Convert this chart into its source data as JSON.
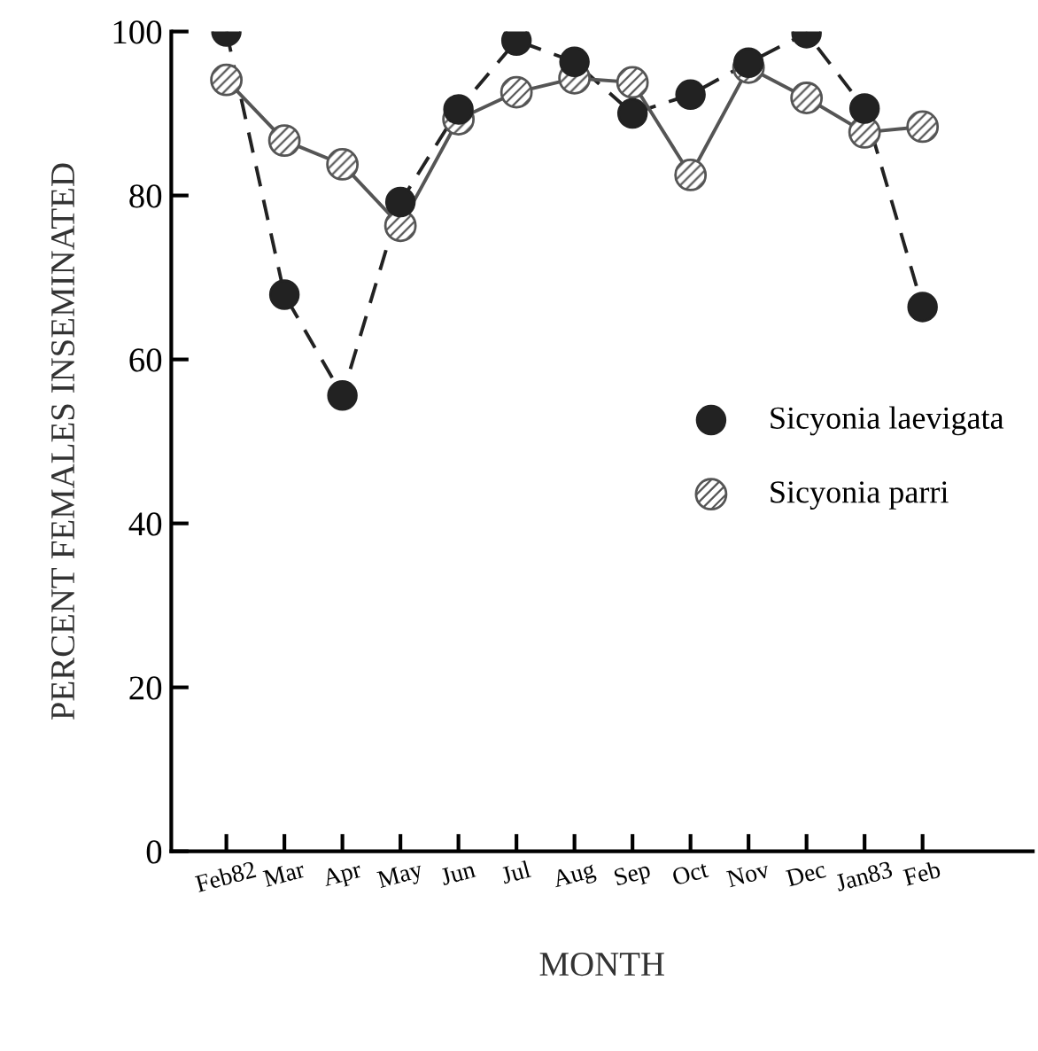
{
  "chart_data": {
    "type": "line",
    "xlabel": "MONTH",
    "ylabel": "PERCENT FEMALES INSEMINATED",
    "categories": [
      "Feb82",
      "Mar",
      "Apr",
      "May",
      "Jun",
      "Jul",
      "Aug",
      "Sep",
      "Oct",
      "Nov",
      "Dec",
      "Jan83",
      "Feb"
    ],
    "series": [
      {
        "name": "Sicyonia laevigata",
        "color": "#222222",
        "marker": "circle",
        "line_style": "dashed",
        "values": [
          100,
          67.9,
          55.6,
          79.2,
          90.5,
          98.9,
          96.3,
          90,
          92.3,
          96.2,
          99.8,
          90.6,
          66.4
        ]
      },
      {
        "name": "Sicyonia parri",
        "color": "#555555",
        "marker": "circle",
        "line_style": "solid",
        "values": [
          94.1,
          86.7,
          83.8,
          76.3,
          89.3,
          92.6,
          94.3,
          93.8,
          82.5,
          95.6,
          91.9,
          87.7,
          88.4
        ]
      }
    ],
    "ylim": [
      0,
      100
    ],
    "yticks": [
      0,
      20,
      40,
      60,
      80,
      100
    ],
    "grid": false,
    "legend": "right"
  }
}
